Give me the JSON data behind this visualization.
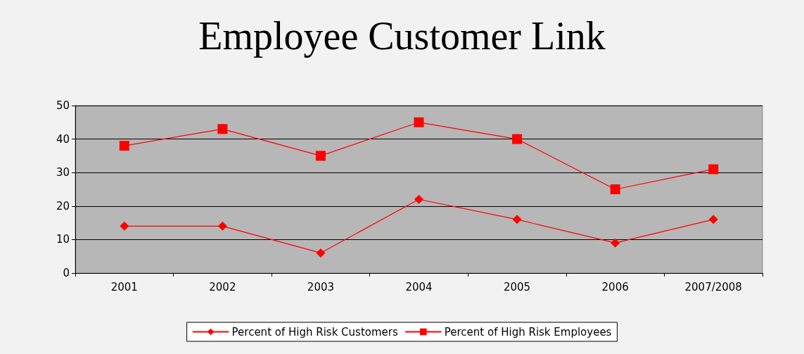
{
  "chart_data": {
    "type": "line",
    "title": "Employee Customer Link",
    "categories": [
      "2001",
      "2002",
      "2003",
      "2004",
      "2005",
      "2006",
      "2007/2008"
    ],
    "series": [
      {
        "name": "Percent of High Risk Customers",
        "color": "#ff0000",
        "marker": "diamond",
        "values": [
          14,
          14,
          6,
          22,
          16,
          9,
          16
        ]
      },
      {
        "name": "Percent of High Risk Employees",
        "color": "#ff0000",
        "marker": "square",
        "values": [
          38,
          43,
          35,
          45,
          40,
          25,
          31
        ]
      }
    ],
    "ylim": [
      0,
      50
    ],
    "yticks": [
      0,
      10,
      20,
      30,
      40,
      50
    ],
    "grid": "y",
    "legend": "bottom",
    "line_style": "solid"
  }
}
